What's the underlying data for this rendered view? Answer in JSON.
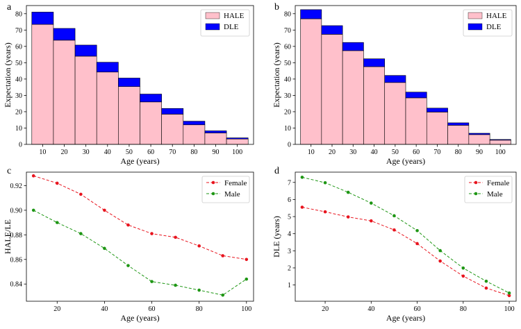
{
  "chart_data": [
    {
      "type": "bar",
      "panel_label": "a",
      "stacked": true,
      "categories": [
        "10",
        "20",
        "30",
        "40",
        "50",
        "60",
        "70",
        "80",
        "90",
        "100"
      ],
      "series": [
        {
          "name": "HALE",
          "values": [
            73.5,
            63.8,
            54.0,
            44.3,
            35.4,
            26.0,
            18.5,
            12.0,
            7.0,
            3.3
          ],
          "color": "#ffc0cb"
        },
        {
          "name": "DLE",
          "values": [
            7.5,
            7.2,
            6.8,
            6.0,
            5.2,
            4.8,
            3.5,
            2.2,
            1.3,
            0.7
          ],
          "color": "#0000ff"
        }
      ],
      "xlabel": "Age (years)",
      "ylabel": "Expectation (years)",
      "ylim": [
        0,
        85
      ],
      "yticks": [
        0,
        10,
        20,
        30,
        40,
        50,
        60,
        70,
        80
      ],
      "legend": "top-right"
    },
    {
      "type": "bar",
      "panel_label": "b",
      "stacked": true,
      "categories": [
        "10",
        "20",
        "30",
        "40",
        "50",
        "60",
        "70",
        "80",
        "90",
        "100"
      ],
      "series": [
        {
          "name": "HALE",
          "values": [
            76.9,
            67.4,
            57.4,
            47.6,
            37.9,
            28.5,
            19.8,
            11.7,
            6.0,
            2.6
          ],
          "color": "#ffc0cb"
        },
        {
          "name": "DLE",
          "values": [
            5.6,
            5.3,
            5.0,
            4.8,
            4.3,
            3.5,
            2.4,
            1.5,
            0.8,
            0.4
          ],
          "color": "#0000ff"
        }
      ],
      "xlabel": "Age (years)",
      "ylabel": "Expectation (years)",
      "ylim": [
        0,
        85
      ],
      "yticks": [
        0,
        10,
        20,
        30,
        40,
        50,
        60,
        70,
        80
      ],
      "legend": "top-right"
    },
    {
      "type": "line",
      "panel_label": "c",
      "x": [
        10,
        20,
        30,
        40,
        50,
        60,
        70,
        80,
        90,
        100
      ],
      "series": [
        {
          "name": "Female",
          "values": [
            0.928,
            0.922,
            0.913,
            0.9,
            0.888,
            0.881,
            0.878,
            0.871,
            0.863,
            0.86
          ],
          "color": "#e8141e"
        },
        {
          "name": "Male",
          "values": [
            0.9,
            0.89,
            0.881,
            0.869,
            0.855,
            0.842,
            0.839,
            0.835,
            0.831,
            0.844
          ],
          "color": "#1e9614"
        }
      ],
      "xlabel": "Age (years)",
      "ylabel": "HALE/LE",
      "xlim": [
        7,
        103
      ],
      "ylim": [
        0.826,
        0.931
      ],
      "xticks": [
        20,
        40,
        60,
        80,
        100
      ],
      "yticks": [
        0.84,
        0.86,
        0.88,
        0.9,
        0.92
      ],
      "ytick_labels": [
        "0.84",
        "0.86",
        "0.88",
        "0.90",
        "0.92"
      ],
      "legend": "top-right"
    },
    {
      "type": "line",
      "panel_label": "d",
      "x": [
        10,
        20,
        30,
        40,
        50,
        60,
        70,
        80,
        90,
        100
      ],
      "series": [
        {
          "name": "Female",
          "values": [
            5.55,
            5.28,
            4.98,
            4.75,
            4.22,
            3.42,
            2.4,
            1.52,
            0.82,
            0.38
          ],
          "color": "#e8141e"
        },
        {
          "name": "Male",
          "values": [
            7.3,
            6.98,
            6.42,
            5.79,
            5.05,
            4.18,
            3.01,
            1.99,
            1.22,
            0.53
          ],
          "color": "#1e9614"
        }
      ],
      "xlabel": "Age (years)",
      "ylabel": "DLE (years)",
      "xlim": [
        7,
        103
      ],
      "ylim": [
        0.05,
        7.6
      ],
      "xticks": [
        20,
        40,
        60,
        80,
        100
      ],
      "yticks": [
        1,
        2,
        3,
        4,
        5,
        6,
        7
      ],
      "ytick_labels": [
        "1",
        "2",
        "3",
        "4",
        "5",
        "6",
        "7"
      ],
      "legend": "top-right"
    }
  ]
}
